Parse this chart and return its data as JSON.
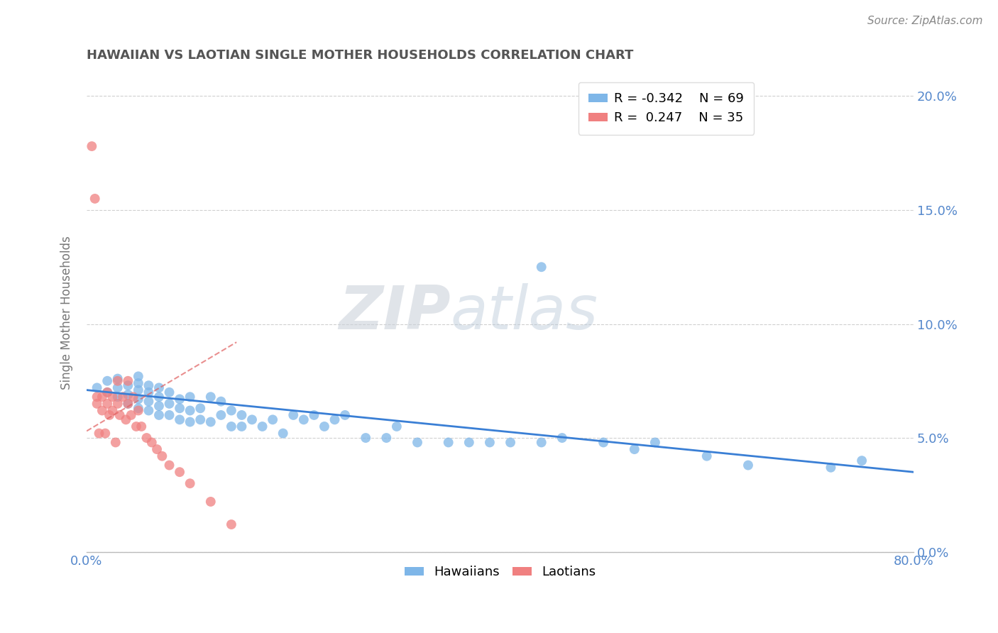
{
  "title": "HAWAIIAN VS LAOTIAN SINGLE MOTHER HOUSEHOLDS CORRELATION CHART",
  "source": "Source: ZipAtlas.com",
  "ylabel": "Single Mother Households",
  "watermark": "ZIPAtlas",
  "xlim": [
    0.0,
    0.8
  ],
  "ylim": [
    0.0,
    0.21
  ],
  "ytick_positions": [
    0.0,
    0.05,
    0.1,
    0.15,
    0.2
  ],
  "ytick_labels": [
    "0.0%",
    "5.0%",
    "10.0%",
    "15.0%",
    "20.0%"
  ],
  "xtick_positions": [
    0.0,
    0.1,
    0.2,
    0.3,
    0.4,
    0.5,
    0.6,
    0.7,
    0.8
  ],
  "xtick_labels": [
    "0.0%",
    "",
    "",
    "",
    "",
    "",
    "",
    "",
    "80.0%"
  ],
  "legend_hawaiian_R": "-0.342",
  "legend_hawaiian_N": "69",
  "legend_laotian_R": "0.247",
  "legend_laotian_N": "35",
  "hawaiian_color": "#7eb6e8",
  "laotian_color": "#f08080",
  "trend_hawaiian_color": "#3a7fd5",
  "trend_laotian_color": "#e06060",
  "background_color": "#ffffff",
  "grid_color": "#d0d0d0",
  "tick_label_color": "#5588cc",
  "title_color": "#555555",
  "hawaiians_x": [
    0.01,
    0.02,
    0.02,
    0.03,
    0.03,
    0.03,
    0.04,
    0.04,
    0.04,
    0.05,
    0.05,
    0.05,
    0.05,
    0.05,
    0.06,
    0.06,
    0.06,
    0.06,
    0.07,
    0.07,
    0.07,
    0.07,
    0.08,
    0.08,
    0.08,
    0.09,
    0.09,
    0.09,
    0.1,
    0.1,
    0.1,
    0.11,
    0.11,
    0.12,
    0.12,
    0.13,
    0.13,
    0.14,
    0.14,
    0.15,
    0.15,
    0.16,
    0.17,
    0.18,
    0.19,
    0.2,
    0.21,
    0.22,
    0.23,
    0.24,
    0.25,
    0.27,
    0.29,
    0.3,
    0.32,
    0.35,
    0.37,
    0.39,
    0.41,
    0.44,
    0.46,
    0.5,
    0.53,
    0.55,
    0.6,
    0.64,
    0.72,
    0.75,
    0.44
  ],
  "hawaiians_y": [
    0.072,
    0.07,
    0.075,
    0.068,
    0.072,
    0.076,
    0.065,
    0.069,
    0.073,
    0.063,
    0.067,
    0.071,
    0.074,
    0.077,
    0.062,
    0.066,
    0.07,
    0.073,
    0.06,
    0.064,
    0.068,
    0.072,
    0.06,
    0.065,
    0.07,
    0.058,
    0.063,
    0.067,
    0.057,
    0.062,
    0.068,
    0.058,
    0.063,
    0.057,
    0.068,
    0.06,
    0.066,
    0.055,
    0.062,
    0.055,
    0.06,
    0.058,
    0.055,
    0.058,
    0.052,
    0.06,
    0.058,
    0.06,
    0.055,
    0.058,
    0.06,
    0.05,
    0.05,
    0.055,
    0.048,
    0.048,
    0.048,
    0.048,
    0.048,
    0.048,
    0.05,
    0.048,
    0.045,
    0.048,
    0.042,
    0.038,
    0.037,
    0.04,
    0.125
  ],
  "laotians_x": [
    0.005,
    0.008,
    0.01,
    0.01,
    0.012,
    0.015,
    0.015,
    0.018,
    0.02,
    0.02,
    0.022,
    0.025,
    0.025,
    0.028,
    0.03,
    0.03,
    0.032,
    0.035,
    0.038,
    0.04,
    0.04,
    0.043,
    0.045,
    0.048,
    0.05,
    0.053,
    0.058,
    0.063,
    0.068,
    0.073,
    0.08,
    0.09,
    0.1,
    0.12,
    0.14
  ],
  "laotians_y": [
    0.178,
    0.155,
    0.068,
    0.065,
    0.052,
    0.068,
    0.062,
    0.052,
    0.07,
    0.065,
    0.06,
    0.068,
    0.062,
    0.048,
    0.075,
    0.065,
    0.06,
    0.068,
    0.058,
    0.075,
    0.065,
    0.06,
    0.068,
    0.055,
    0.062,
    0.055,
    0.05,
    0.048,
    0.045,
    0.042,
    0.038,
    0.035,
    0.03,
    0.022,
    0.012
  ],
  "trend_h_x0": 0.0,
  "trend_h_x1": 0.8,
  "trend_h_y0": 0.071,
  "trend_h_y1": 0.035,
  "trend_l_x0": 0.0,
  "trend_l_x1": 0.145,
  "trend_l_y0": 0.053,
  "trend_l_y1": 0.092
}
